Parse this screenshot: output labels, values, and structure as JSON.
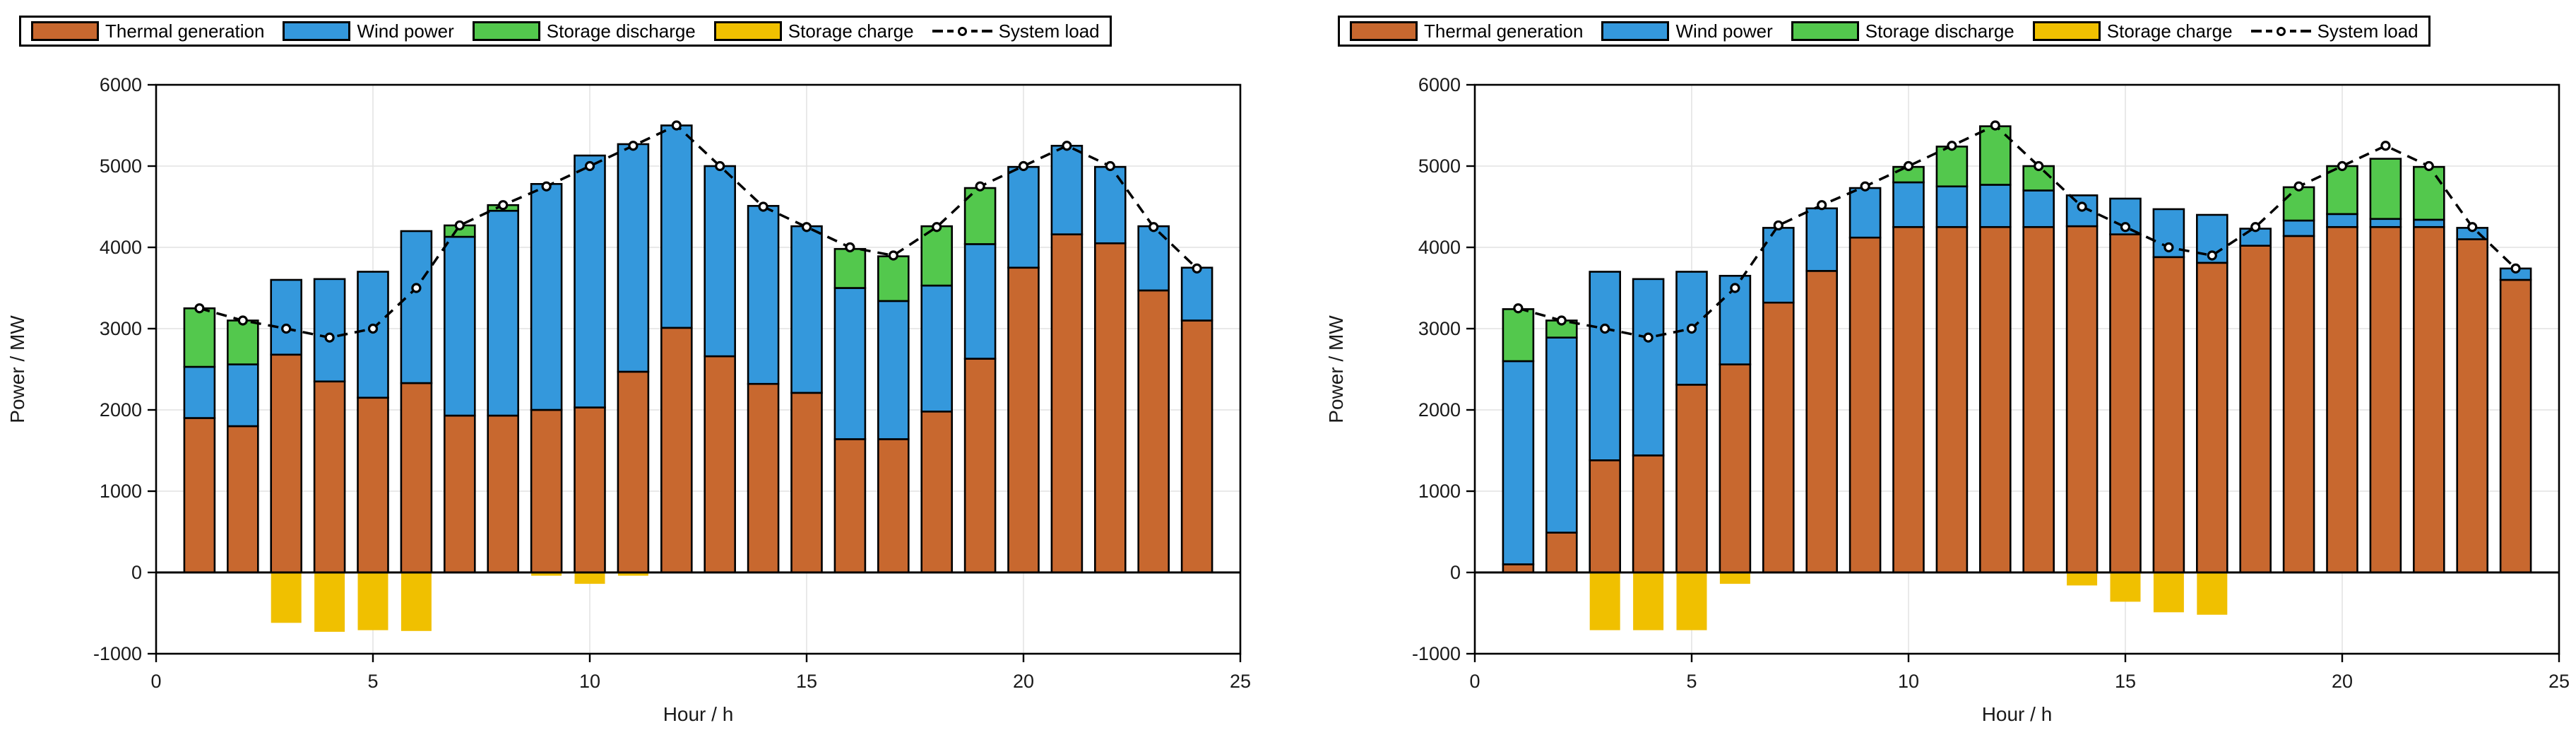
{
  "legend": {
    "items": [
      {
        "label": "Thermal generation",
        "color": "#C8682F",
        "type": "box"
      },
      {
        "label": "Wind power",
        "color": "#3498DC",
        "type": "box"
      },
      {
        "label": "Storage discharge",
        "color": "#53C84D",
        "type": "box"
      },
      {
        "label": "Storage charge",
        "color": "#F0C000",
        "type": "box"
      },
      {
        "label": "System load",
        "color": "#000000",
        "type": "line"
      }
    ]
  },
  "colors": {
    "thermal": "#C8682F",
    "wind": "#3498DC",
    "discharge": "#53C84D",
    "charge": "#F0C000",
    "load_line": "#000000",
    "grid": "#E2E2E2",
    "axis": "#000000",
    "background": "#FFFFFF"
  },
  "chart_data": [
    {
      "type": "bar",
      "subtype": "stacked-bar-with-line",
      "panel": "left",
      "title": "",
      "xlabel": "Hour / h",
      "ylabel": "Power / MW",
      "xlim": [
        0,
        25
      ],
      "ylim": [
        -1000,
        6000
      ],
      "xticks": [
        0,
        5,
        10,
        15,
        20,
        25
      ],
      "yticks": [
        -1000,
        0,
        1000,
        2000,
        3000,
        4000,
        5000,
        6000
      ],
      "grid": true,
      "legend_position": "top",
      "categories": [
        1,
        2,
        3,
        4,
        5,
        6,
        7,
        8,
        9,
        10,
        11,
        12,
        13,
        14,
        15,
        16,
        17,
        18,
        19,
        20,
        21,
        22,
        23,
        24
      ],
      "series": [
        {
          "name": "Thermal generation",
          "color": "#C8682F",
          "values": [
            1900,
            1800,
            2680,
            2350,
            2150,
            2330,
            1930,
            1930,
            2000,
            2030,
            2470,
            3010,
            2660,
            2320,
            2210,
            1640,
            1640,
            1980,
            2630,
            3750,
            4160,
            4050,
            3470,
            3100
          ]
        },
        {
          "name": "Wind power",
          "color": "#3498DC",
          "values": [
            630,
            760,
            920,
            1260,
            1550,
            1870,
            2200,
            2520,
            2780,
            3100,
            2800,
            2490,
            2340,
            2190,
            2050,
            1860,
            1700,
            1550,
            1410,
            1240,
            1090,
            940,
            790,
            650
          ]
        },
        {
          "name": "Storage discharge",
          "color": "#53C84D",
          "values": [
            720,
            540,
            0,
            0,
            0,
            0,
            140,
            70,
            0,
            0,
            0,
            0,
            0,
            0,
            0,
            480,
            550,
            730,
            690,
            0,
            0,
            0,
            0,
            0
          ]
        },
        {
          "name": "Storage charge",
          "color": "#F0C000",
          "values": [
            0,
            0,
            -620,
            -730,
            -710,
            -720,
            0,
            0,
            -40,
            -140,
            -40,
            0,
            0,
            0,
            0,
            0,
            0,
            0,
            0,
            0,
            0,
            0,
            0,
            0
          ]
        }
      ],
      "line_series": {
        "name": "System load",
        "color": "#000000",
        "style": "dashed",
        "marker": "circle",
        "values": [
          3250,
          3100,
          3000,
          2890,
          3000,
          3500,
          4270,
          4520,
          4750,
          5000,
          5250,
          5500,
          5000,
          4500,
          4250,
          4000,
          3900,
          4250,
          4750,
          5000,
          5250,
          5000,
          4250,
          3740
        ]
      }
    },
    {
      "type": "bar",
      "subtype": "stacked-bar-with-line",
      "panel": "right",
      "title": "",
      "xlabel": "Hour / h",
      "ylabel": "Power / MW",
      "xlim": [
        0,
        25
      ],
      "ylim": [
        -1000,
        6000
      ],
      "xticks": [
        0,
        5,
        10,
        15,
        20,
        25
      ],
      "yticks": [
        -1000,
        0,
        1000,
        2000,
        3000,
        4000,
        5000,
        6000
      ],
      "grid": true,
      "legend_position": "top",
      "categories": [
        1,
        2,
        3,
        4,
        5,
        6,
        7,
        8,
        9,
        10,
        11,
        12,
        13,
        14,
        15,
        16,
        17,
        18,
        19,
        20,
        21,
        22,
        23,
        24
      ],
      "series": [
        {
          "name": "Thermal generation",
          "color": "#C8682F",
          "values": [
            100,
            490,
            1380,
            1440,
            2310,
            2560,
            3320,
            3710,
            4120,
            4250,
            4250,
            4250,
            4250,
            4260,
            4160,
            3880,
            3810,
            4020,
            4140,
            4250,
            4250,
            4250,
            4100,
            3600
          ]
        },
        {
          "name": "Wind power",
          "color": "#3498DC",
          "values": [
            2500,
            2400,
            2320,
            2170,
            1390,
            1090,
            920,
            770,
            610,
            550,
            500,
            520,
            450,
            380,
            440,
            590,
            590,
            210,
            190,
            160,
            100,
            90,
            140,
            140
          ]
        },
        {
          "name": "Storage discharge",
          "color": "#53C84D",
          "values": [
            640,
            210,
            0,
            0,
            0,
            0,
            0,
            0,
            0,
            190,
            490,
            720,
            300,
            0,
            0,
            0,
            0,
            0,
            410,
            590,
            740,
            650,
            0,
            0
          ]
        },
        {
          "name": "Storage charge",
          "color": "#F0C000",
          "values": [
            0,
            0,
            -710,
            -710,
            -710,
            -140,
            0,
            0,
            0,
            0,
            0,
            0,
            0,
            -160,
            -360,
            -490,
            -520,
            0,
            0,
            0,
            0,
            0,
            0,
            0
          ]
        }
      ],
      "line_series": {
        "name": "System load",
        "color": "#000000",
        "style": "dashed",
        "marker": "circle",
        "values": [
          3250,
          3100,
          3000,
          2890,
          3000,
          3500,
          4270,
          4520,
          4750,
          5000,
          5250,
          5500,
          5000,
          4500,
          4250,
          4000,
          3900,
          4250,
          4750,
          5000,
          5250,
          5000,
          4250,
          3740
        ]
      }
    }
  ]
}
